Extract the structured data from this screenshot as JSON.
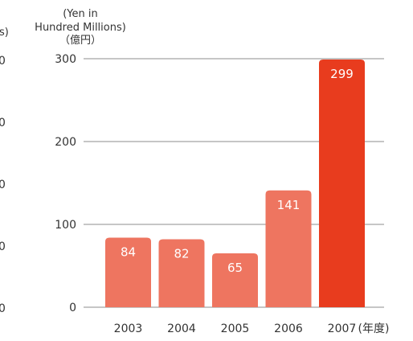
{
  "chart_data": {
    "type": "bar",
    "unit_label_en_lines": [
      "(Yen in",
      "Hundred Millions)"
    ],
    "unit_label_ja": "（億円）",
    "left_clipped_fragments": {
      "top_label": "s)",
      "ticks": [
        "0",
        "0",
        "0",
        "0",
        "0"
      ]
    },
    "categories": [
      "2003",
      "2004",
      "2005",
      "2006",
      "2007"
    ],
    "category_suffix": "(年度)",
    "values": [
      84,
      82,
      65,
      141,
      299
    ],
    "value_labels": [
      "84",
      "82",
      "65",
      "141",
      "299"
    ],
    "yticks": [
      0,
      100,
      200,
      300
    ],
    "ylim": [
      0,
      300
    ],
    "grid": true,
    "colors": {
      "bar": "#ee7560",
      "highlight_bar": "#e83c1e",
      "gridline": "#8c8c8c",
      "text": "#333333",
      "value_text": "#ffffff"
    },
    "highlight_index": 4
  }
}
